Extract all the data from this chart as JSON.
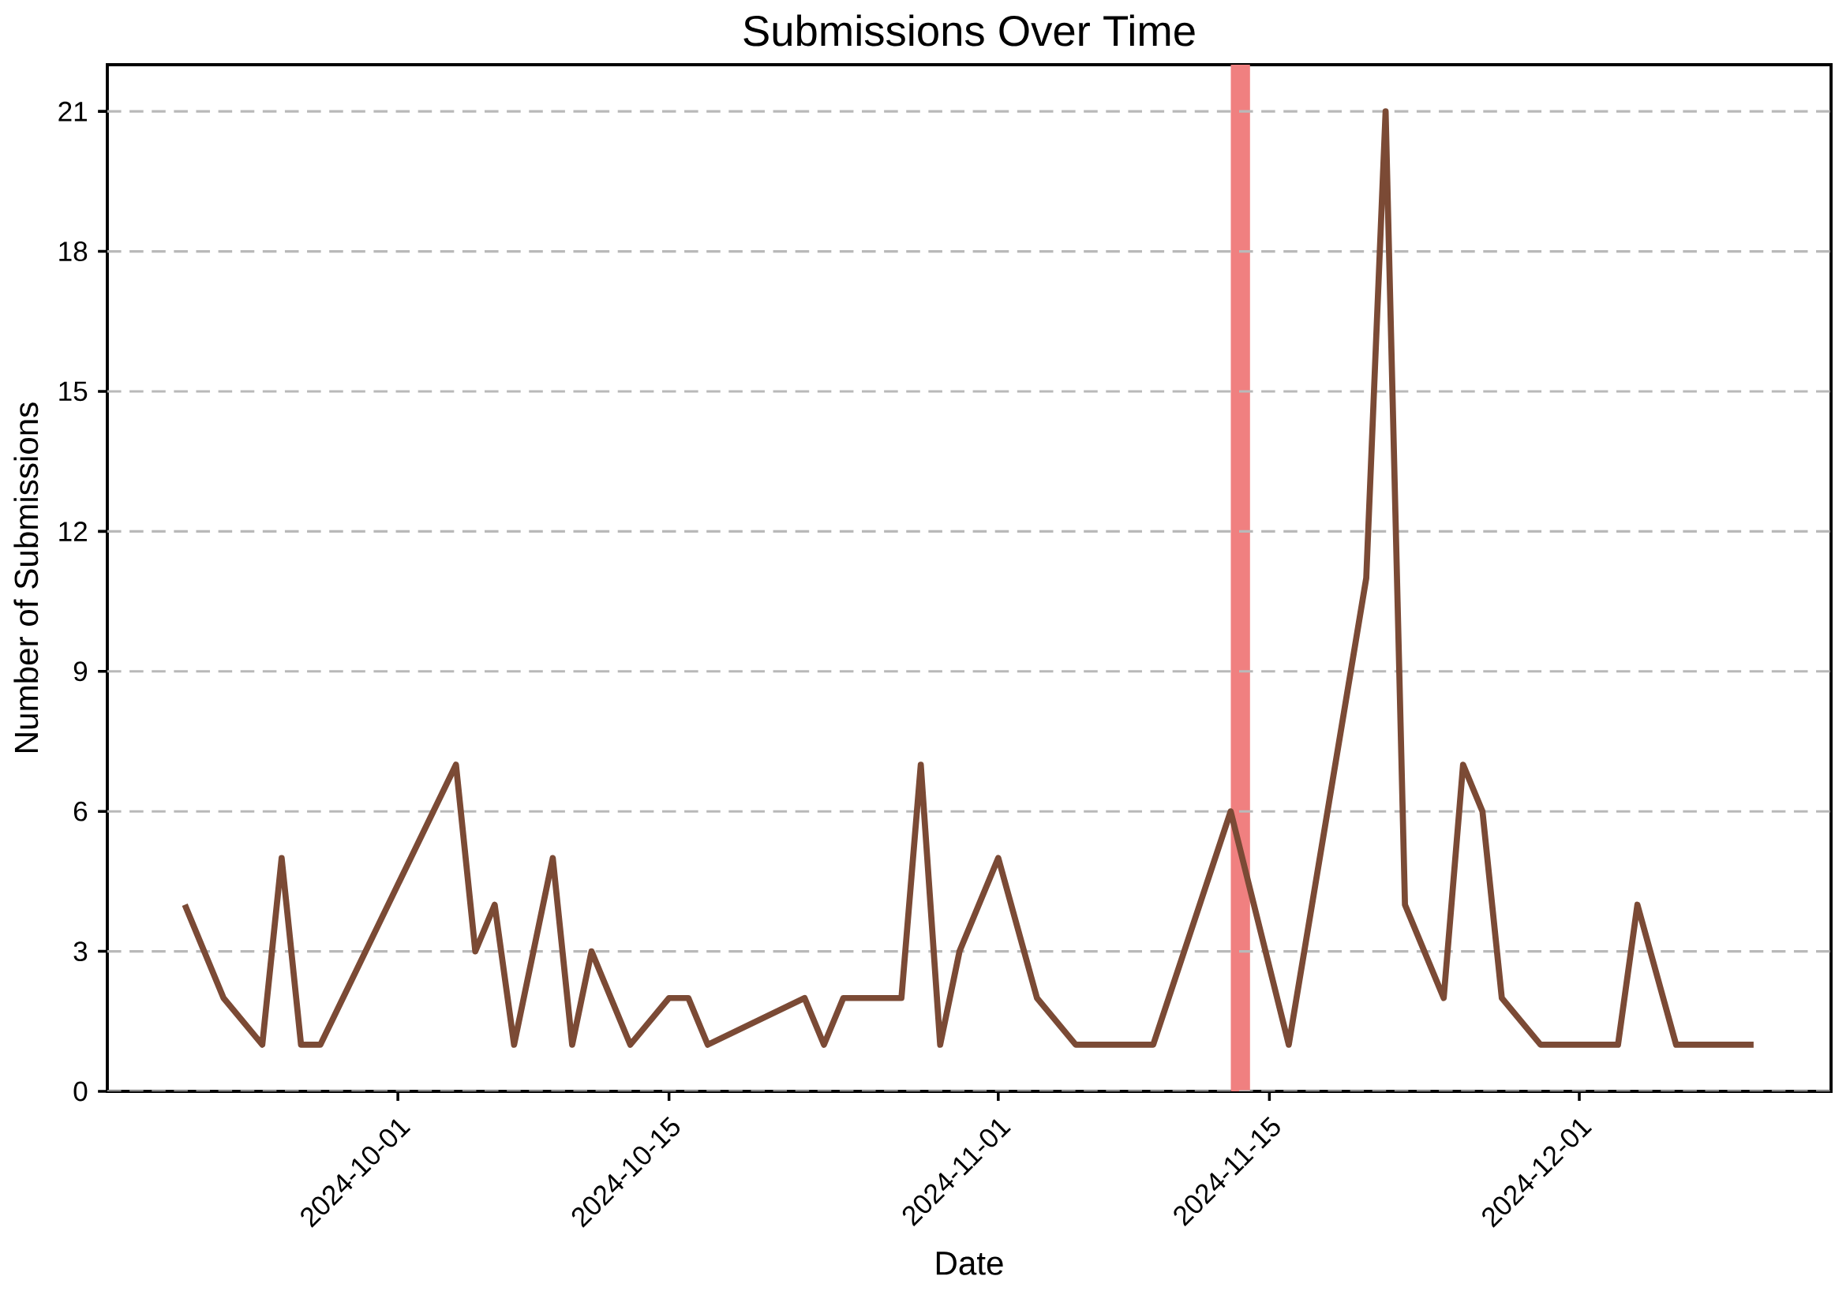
{
  "chart_data": {
    "type": "line",
    "title": "Submissions Over Time",
    "xlabel": "Date",
    "ylabel": "Number of Submissions",
    "x": [
      "2024-09-20",
      "2024-09-22",
      "2024-09-24",
      "2024-09-25",
      "2024-09-26",
      "2024-09-27",
      "2024-10-04",
      "2024-10-05",
      "2024-10-06",
      "2024-10-07",
      "2024-10-09",
      "2024-10-10",
      "2024-10-11",
      "2024-10-13",
      "2024-10-15",
      "2024-10-16",
      "2024-10-17",
      "2024-10-22",
      "2024-10-23",
      "2024-10-24",
      "2024-10-27",
      "2024-10-28",
      "2024-10-29",
      "2024-10-30",
      "2024-11-01",
      "2024-11-03",
      "2024-11-05",
      "2024-11-09",
      "2024-11-13",
      "2024-11-16",
      "2024-11-20",
      "2024-11-21",
      "2024-11-22",
      "2024-11-24",
      "2024-11-25",
      "2024-11-26",
      "2024-11-27",
      "2024-11-29",
      "2024-12-03",
      "2024-12-04",
      "2024-12-06",
      "2024-12-10"
    ],
    "series": [
      {
        "color": "#7b4a35",
        "values": [
          4,
          2,
          1,
          5,
          1,
          1,
          7,
          3,
          4,
          1,
          5,
          1,
          3,
          1,
          2,
          2,
          1,
          2,
          1,
          2,
          2,
          7,
          1,
          3,
          5,
          2,
          1,
          1,
          6,
          1,
          11,
          21,
          4,
          2,
          7,
          6,
          2,
          1,
          1,
          4,
          1,
          1
        ]
      }
    ],
    "xlim": [
      "2024-09-16",
      "2024-12-14"
    ],
    "xticks": [
      "2024-10-01",
      "2024-10-15",
      "2024-11-01",
      "2024-11-15",
      "2024-12-01"
    ],
    "ylim": [
      0,
      22
    ],
    "yticks": [
      0,
      3,
      6,
      9,
      12,
      15,
      18,
      21
    ],
    "grid": "y",
    "marker": "none",
    "line_style": "solid",
    "bands": [
      {
        "axis": "x",
        "from": "2024-11-13",
        "to": "2024-11-14",
        "color": "#f08080"
      }
    ]
  }
}
